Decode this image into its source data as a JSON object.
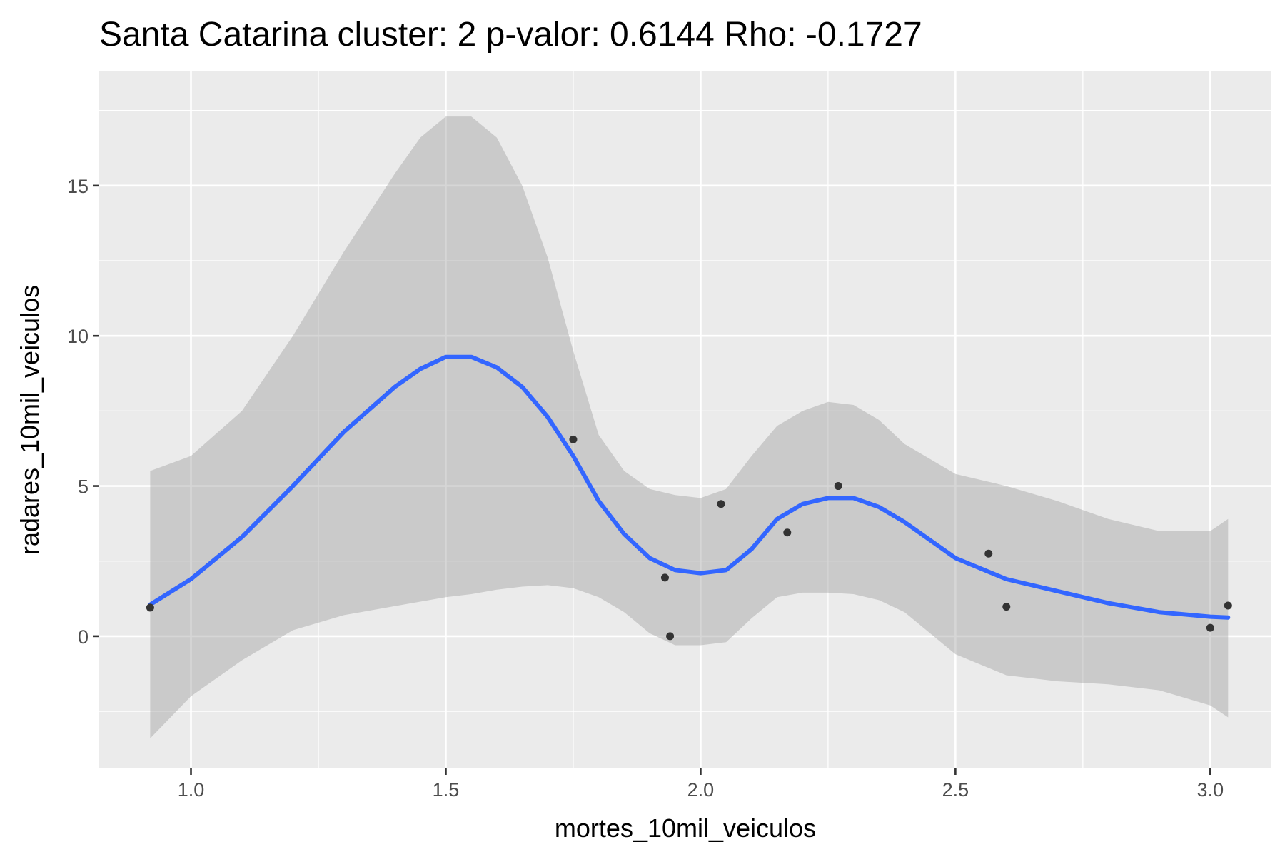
{
  "chart_data": {
    "type": "scatter",
    "title": "Santa Catarina cluster: 2 p-valor: 0.6144 Rho: -0.1727",
    "xlabel": "mortes_10mil_veiculos",
    "ylabel": "radares_10mil_veiculos",
    "xlim": [
      0.82,
      3.12
    ],
    "ylim": [
      -4.4,
      18.8
    ],
    "x_ticks": [
      1.0,
      1.5,
      2.0,
      2.5,
      3.0
    ],
    "x_tick_labels": [
      "1.0",
      "1.5",
      "2.0",
      "2.5",
      "3.0"
    ],
    "y_ticks": [
      0,
      5,
      10,
      15
    ],
    "y_tick_labels": [
      "0",
      "5",
      "10",
      "15"
    ],
    "grid": true,
    "legend": "none",
    "colors": {
      "panel": "#ebebeb",
      "grid": "#ffffff",
      "point": "#333333",
      "smooth_line": "#3366ff",
      "confidence_band": "#999999"
    },
    "points": {
      "x": [
        0.92,
        1.75,
        1.93,
        1.94,
        2.04,
        2.17,
        2.27,
        2.565,
        2.6,
        3.0,
        3.035
      ],
      "y": [
        0.95,
        6.55,
        1.95,
        0.0,
        4.4,
        3.45,
        5.0,
        2.75,
        0.98,
        0.28,
        1.02
      ]
    },
    "smooth": {
      "x": [
        0.92,
        1.0,
        1.1,
        1.2,
        1.3,
        1.4,
        1.45,
        1.5,
        1.55,
        1.6,
        1.65,
        1.7,
        1.75,
        1.8,
        1.85,
        1.9,
        1.95,
        2.0,
        2.05,
        2.1,
        2.15,
        2.2,
        2.25,
        2.3,
        2.35,
        2.4,
        2.5,
        2.6,
        2.7,
        2.8,
        2.9,
        3.0,
        3.035
      ],
      "y": [
        1.05,
        1.9,
        3.3,
        5.0,
        6.8,
        8.3,
        8.9,
        9.3,
        9.3,
        8.95,
        8.3,
        7.3,
        6.0,
        4.5,
        3.4,
        2.6,
        2.2,
        2.1,
        2.2,
        2.9,
        3.9,
        4.4,
        4.6,
        4.6,
        4.3,
        3.8,
        2.6,
        1.9,
        1.5,
        1.1,
        0.8,
        0.65,
        0.62
      ]
    },
    "band_upper": [
      5.5,
      6.0,
      7.5,
      10.0,
      12.8,
      15.4,
      16.6,
      17.3,
      17.3,
      16.6,
      15.0,
      12.6,
      9.5,
      6.7,
      5.5,
      4.9,
      4.7,
      4.6,
      4.9,
      6.0,
      7.0,
      7.5,
      7.8,
      7.7,
      7.2,
      6.4,
      5.4,
      5.0,
      4.5,
      3.9,
      3.5,
      3.5,
      3.9
    ],
    "band_lower": [
      -3.4,
      -2.0,
      -0.8,
      0.2,
      0.7,
      1.0,
      1.15,
      1.3,
      1.4,
      1.55,
      1.65,
      1.7,
      1.6,
      1.3,
      0.8,
      0.1,
      -0.3,
      -0.3,
      -0.2,
      0.6,
      1.3,
      1.45,
      1.45,
      1.4,
      1.2,
      0.8,
      -0.6,
      -1.3,
      -1.5,
      -1.6,
      -1.8,
      -2.3,
      -2.7
    ]
  }
}
